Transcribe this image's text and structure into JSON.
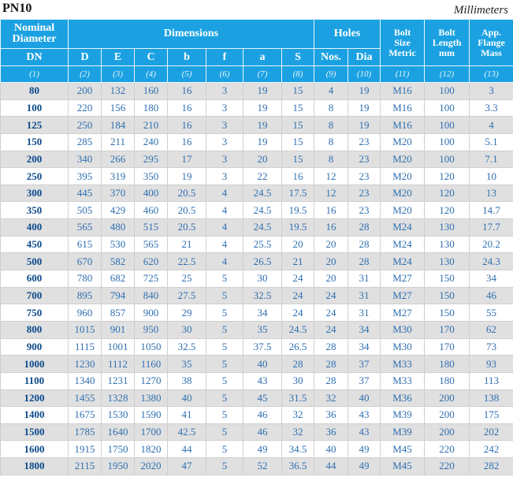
{
  "header": {
    "title": "PN10",
    "unit": "Millimeters"
  },
  "table": {
    "head1": {
      "nominal": "Nominal Diameter",
      "dimensions": "Dimensions",
      "holes": "Holes",
      "bolt_size": [
        "Bolt",
        "Size",
        "Metric"
      ],
      "bolt_length": [
        "Bolt",
        "Length",
        "mm"
      ],
      "mass": [
        "App.",
        "Flange",
        "Mass"
      ]
    },
    "head2": [
      "DN",
      "D",
      "E",
      "C",
      "b",
      "f",
      "a",
      "S",
      "Nos.",
      "Dia"
    ],
    "head3": [
      "(1)",
      "(2)",
      "(3)",
      "(4)",
      "(5)",
      "(6)",
      "(7)",
      "(8)",
      "(9)",
      "(10)",
      "(11)",
      "(12)",
      "(13)"
    ],
    "rows": [
      [
        "80",
        "200",
        "132",
        "160",
        "16",
        "3",
        "19",
        "15",
        "4",
        "19",
        "M16",
        "100",
        "3"
      ],
      [
        "100",
        "220",
        "156",
        "180",
        "16",
        "3",
        "19",
        "15",
        "8",
        "19",
        "M16",
        "100",
        "3.3"
      ],
      [
        "125",
        "250",
        "184",
        "210",
        "16",
        "3",
        "19",
        "15",
        "8",
        "19",
        "M16",
        "100",
        "4"
      ],
      [
        "150",
        "285",
        "211",
        "240",
        "16",
        "3",
        "19",
        "15",
        "8",
        "23",
        "M20",
        "100",
        "5.1"
      ],
      [
        "200",
        "340",
        "266",
        "295",
        "17",
        "3",
        "20",
        "15",
        "8",
        "23",
        "M20",
        "100",
        "7.1"
      ],
      [
        "250",
        "395",
        "319",
        "350",
        "19",
        "3",
        "22",
        "16",
        "12",
        "23",
        "M20",
        "120",
        "10"
      ],
      [
        "300",
        "445",
        "370",
        "400",
        "20.5",
        "4",
        "24.5",
        "17.5",
        "12",
        "23",
        "M20",
        "120",
        "13"
      ],
      [
        "350",
        "505",
        "429",
        "460",
        "20.5",
        "4",
        "24.5",
        "19.5",
        "16",
        "23",
        "M20",
        "120",
        "14.7"
      ],
      [
        "400",
        "565",
        "480",
        "515",
        "20.5",
        "4",
        "24.5",
        "19.5",
        "16",
        "28",
        "M24",
        "130",
        "17.7"
      ],
      [
        "450",
        "615",
        "530",
        "565",
        "21",
        "4",
        "25.5",
        "20",
        "20",
        "28",
        "M24",
        "130",
        "20.2"
      ],
      [
        "500",
        "670",
        "582",
        "620",
        "22.5",
        "4",
        "26.5",
        "21",
        "20",
        "28",
        "M24",
        "130",
        "24.3"
      ],
      [
        "600",
        "780",
        "682",
        "725",
        "25",
        "5",
        "30",
        "24",
        "20",
        "31",
        "M27",
        "150",
        "34"
      ],
      [
        "700",
        "895",
        "794",
        "840",
        "27.5",
        "5",
        "32.5",
        "24",
        "24",
        "31",
        "M27",
        "150",
        "46"
      ],
      [
        "750",
        "960",
        "857",
        "900",
        "29",
        "5",
        "34",
        "24",
        "24",
        "31",
        "M27",
        "150",
        "55"
      ],
      [
        "800",
        "1015",
        "901",
        "950",
        "30",
        "5",
        "35",
        "24.5",
        "24",
        "34",
        "M30",
        "170",
        "62"
      ],
      [
        "900",
        "1115",
        "1001",
        "1050",
        "32.5",
        "5",
        "37.5",
        "26.5",
        "28",
        "34",
        "M30",
        "170",
        "73"
      ],
      [
        "1000",
        "1230",
        "1112",
        "1160",
        "35",
        "5",
        "40",
        "28",
        "28",
        "37",
        "M33",
        "180",
        "93"
      ],
      [
        "1100",
        "1340",
        "1231",
        "1270",
        "38",
        "5",
        "43",
        "30",
        "28",
        "37",
        "M33",
        "180",
        "113"
      ],
      [
        "1200",
        "1455",
        "1328",
        "1380",
        "40",
        "5",
        "45",
        "31.5",
        "32",
        "40",
        "M36",
        "200",
        "138"
      ],
      [
        "1400",
        "1675",
        "1530",
        "1590",
        "41",
        "5",
        "46",
        "32",
        "36",
        "43",
        "M39",
        "200",
        "175"
      ],
      [
        "1500",
        "1785",
        "1640",
        "1700",
        "42.5",
        "5",
        "46",
        "32",
        "36",
        "43",
        "M39",
        "200",
        "202"
      ],
      [
        "1600",
        "1915",
        "1750",
        "1820",
        "44",
        "5",
        "49",
        "34.5",
        "40",
        "49",
        "M45",
        "220",
        "242"
      ],
      [
        "1800",
        "2115",
        "1950",
        "2020",
        "47",
        "5",
        "52",
        "36.5",
        "44",
        "49",
        "M45",
        "220",
        "282"
      ]
    ]
  }
}
